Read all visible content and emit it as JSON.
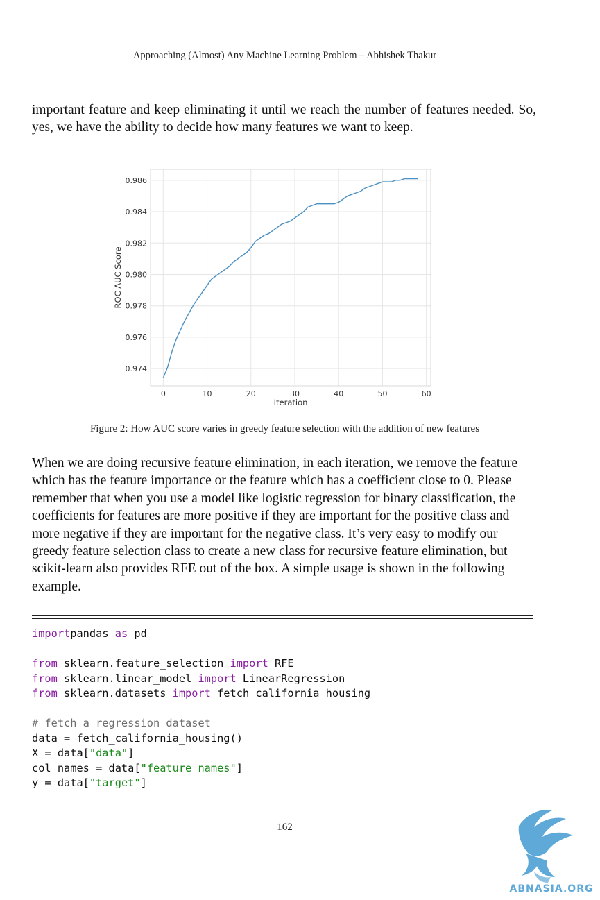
{
  "header": "Approaching (Almost) Any Machine Learning Problem – Abhishek Thakur",
  "paragraph1": "important feature and keep eliminating it until we reach the number of features needed. So, yes, we have the ability to decide how many features we want to keep.",
  "caption": "Figure 2: How AUC score varies in greedy feature selection with the addition of new features",
  "paragraph2": "When we are doing recursive feature elimination, in each iteration, we remove the feature which has the feature importance or the feature which has a coefficient close to 0. Please remember that when you use a model like logistic regression for binary classification, the coefficients for features are more positive if they are important for the positive class and more negative if they are important for the negative class. It’s very easy to modify our greedy feature selection class to create a new class for recursive feature elimination, but scikit-learn also provides RFE out of the box. A simple usage is shown in the following example.",
  "code_lines": [
    [
      [
        "kw",
        "import"
      ],
      [
        "",
        "pandas "
      ],
      [
        "kw",
        "as"
      ],
      [
        "",
        " pd"
      ]
    ],
    [],
    [
      [
        "kw",
        "from"
      ],
      [
        "",
        " sklearn.feature_selection "
      ],
      [
        "kw",
        "import"
      ],
      [
        "",
        " RFE"
      ]
    ],
    [
      [
        "kw",
        "from"
      ],
      [
        "",
        " sklearn.linear_model "
      ],
      [
        "kw",
        "import"
      ],
      [
        "",
        " LinearRegression"
      ]
    ],
    [
      [
        "kw",
        "from"
      ],
      [
        "",
        " sklearn.datasets "
      ],
      [
        "kw",
        "import"
      ],
      [
        "",
        " fetch_california_housing"
      ]
    ],
    [],
    [
      [
        "cm",
        "# fetch a regression dataset"
      ]
    ],
    [
      [
        "",
        "data = fetch_california_housing()"
      ]
    ],
    [
      [
        "",
        "X = data["
      ],
      [
        "st",
        "\"data\""
      ],
      [
        "",
        "]"
      ]
    ],
    [
      [
        "",
        "col_names = data["
      ],
      [
        "st",
        "\"feature_names\""
      ],
      [
        "",
        "]"
      ]
    ],
    [
      [
        "",
        "y = data["
      ],
      [
        "st",
        "\"target\""
      ],
      [
        "",
        "]"
      ]
    ]
  ],
  "page_number": "162",
  "logo_text": "ABNASIA.ORG",
  "colors": {
    "line": "#4a90c2",
    "grid": "#e6e6e6",
    "keyword": "#8a1ea0",
    "string": "#1a8a1a",
    "comment": "#6b6b6b",
    "logo": "#5fa9d8"
  },
  "chart_data": {
    "type": "line",
    "xlabel": "Iteration",
    "ylabel": "ROC AUC Score",
    "xlim": [
      -2.9,
      61
    ],
    "ylim": [
      0.9729,
      0.9867
    ],
    "xticks": [
      0,
      10,
      20,
      30,
      40,
      50,
      60
    ],
    "yticks": [
      0.974,
      0.976,
      0.978,
      0.98,
      0.982,
      0.984,
      0.986
    ],
    "ytick_labels": [
      "0.974",
      "0.976",
      "0.978",
      "0.980",
      "0.982",
      "0.984",
      "0.986"
    ],
    "grid": true,
    "x": [
      0,
      1,
      2,
      3,
      4,
      5,
      6,
      7,
      8,
      9,
      10,
      11,
      12,
      13,
      14,
      15,
      16,
      17,
      18,
      19,
      20,
      21,
      22,
      23,
      24,
      25,
      26,
      27,
      28,
      29,
      30,
      31,
      32,
      33,
      34,
      35,
      36,
      37,
      38,
      39,
      40,
      41,
      42,
      43,
      44,
      45,
      46,
      47,
      48,
      49,
      50,
      51,
      52,
      53,
      54,
      55,
      56,
      57,
      58
    ],
    "y": [
      0.9734,
      0.9741,
      0.9751,
      0.9759,
      0.9765,
      0.9771,
      0.9776,
      0.9781,
      0.9785,
      0.9789,
      0.9793,
      0.9797,
      0.9799,
      0.9801,
      0.9803,
      0.9805,
      0.9808,
      0.981,
      0.9812,
      0.9814,
      0.9817,
      0.9821,
      0.9823,
      0.9825,
      0.9826,
      0.9828,
      0.983,
      0.9832,
      0.9833,
      0.9834,
      0.9836,
      0.9838,
      0.984,
      0.9843,
      0.9844,
      0.9845,
      0.9845,
      0.9845,
      0.9845,
      0.9845,
      0.9846,
      0.9848,
      0.985,
      0.9851,
      0.9852,
      0.9853,
      0.9855,
      0.9856,
      0.9857,
      0.9858,
      0.9859,
      0.9859,
      0.9859,
      0.986,
      0.986,
      0.9861,
      0.9861,
      0.9861,
      0.9861
    ]
  }
}
